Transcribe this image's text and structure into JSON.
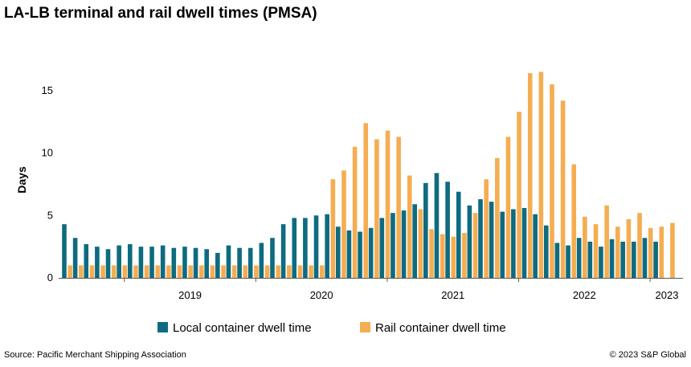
{
  "page": {
    "title": "LA-LB terminal and rail dwell times (PMSA)",
    "source": "Source: Pacific Merchant Shipping Association",
    "copyright": "© 2023 S&P Global"
  },
  "chart_data": {
    "type": "bar",
    "title": "LA-LB terminal and rail dwell times (PMSA)",
    "xlabel": "",
    "ylabel": "Days",
    "ylim": [
      0,
      17.5
    ],
    "yticks": [
      0,
      5,
      10,
      15
    ],
    "grid": false,
    "legend_position": "bottom",
    "x_start": "2018-07",
    "x_end": "2023-03",
    "year_labels": [
      {
        "date": "2019-01",
        "label": "2019"
      },
      {
        "date": "2020-01",
        "label": "2020"
      },
      {
        "date": "2021-01",
        "label": "2021"
      },
      {
        "date": "2022-01",
        "label": "2022"
      },
      {
        "date": "2023-01",
        "label": "2023"
      }
    ],
    "categories": [
      "2018-07",
      "2018-08",
      "2018-09",
      "2018-10",
      "2018-11",
      "2018-12",
      "2019-01",
      "2019-02",
      "2019-03",
      "2019-04",
      "2019-05",
      "2019-06",
      "2019-07",
      "2019-08",
      "2019-09",
      "2019-10",
      "2019-11",
      "2019-12",
      "2020-01",
      "2020-02",
      "2020-03",
      "2020-04",
      "2020-05",
      "2020-06",
      "2020-07",
      "2020-08",
      "2020-09",
      "2020-10",
      "2020-11",
      "2020-12",
      "2021-01",
      "2021-02",
      "2021-03",
      "2021-04",
      "2021-05",
      "2021-06",
      "2021-07",
      "2021-08",
      "2021-09",
      "2021-10",
      "2021-11",
      "2021-12",
      "2022-01",
      "2022-02",
      "2022-03",
      "2022-04",
      "2022-05",
      "2022-06",
      "2022-07",
      "2022-08",
      "2022-09",
      "2022-10",
      "2022-11",
      "2022-12",
      "2023-01",
      "2023-02",
      "2023-03"
    ],
    "series": [
      {
        "name": "Local container dwell time",
        "color": "#0e6b80",
        "values": [
          4.3,
          3.2,
          2.7,
          2.5,
          2.3,
          2.6,
          2.7,
          2.5,
          2.5,
          2.6,
          2.4,
          2.5,
          2.4,
          2.3,
          2.0,
          2.6,
          2.4,
          2.4,
          2.8,
          3.2,
          4.3,
          4.8,
          4.8,
          5.0,
          5.1,
          4.1,
          3.8,
          3.7,
          4.0,
          4.8,
          5.2,
          5.4,
          5.9,
          7.6,
          8.4,
          7.7,
          6.9,
          5.8,
          6.3,
          6.1,
          5.3,
          5.5,
          5.6,
          5.1,
          4.2,
          2.8,
          2.6,
          3.2,
          2.9,
          2.5,
          3.1,
          2.9,
          2.9,
          3.2,
          2.9,
          null,
          null
        ]
      },
      {
        "name": "Rail container dwell time",
        "color": "#f5ad52",
        "values": [
          1.0,
          1.0,
          1.0,
          1.0,
          1.0,
          1.0,
          1.0,
          1.0,
          1.0,
          1.0,
          1.0,
          1.0,
          1.0,
          1.0,
          1.0,
          1.0,
          1.0,
          1.0,
          1.0,
          1.0,
          1.0,
          1.0,
          1.0,
          1.0,
          7.9,
          8.6,
          10.5,
          12.4,
          11.1,
          11.8,
          11.3,
          8.2,
          5.5,
          3.9,
          3.5,
          3.3,
          3.6,
          5.2,
          7.9,
          9.6,
          11.3,
          13.3,
          16.4,
          16.5,
          15.5,
          14.2,
          9.1,
          4.9,
          4.3,
          5.8,
          4.1,
          4.7,
          5.2,
          4.0,
          4.1,
          4.4,
          null
        ]
      }
    ]
  }
}
